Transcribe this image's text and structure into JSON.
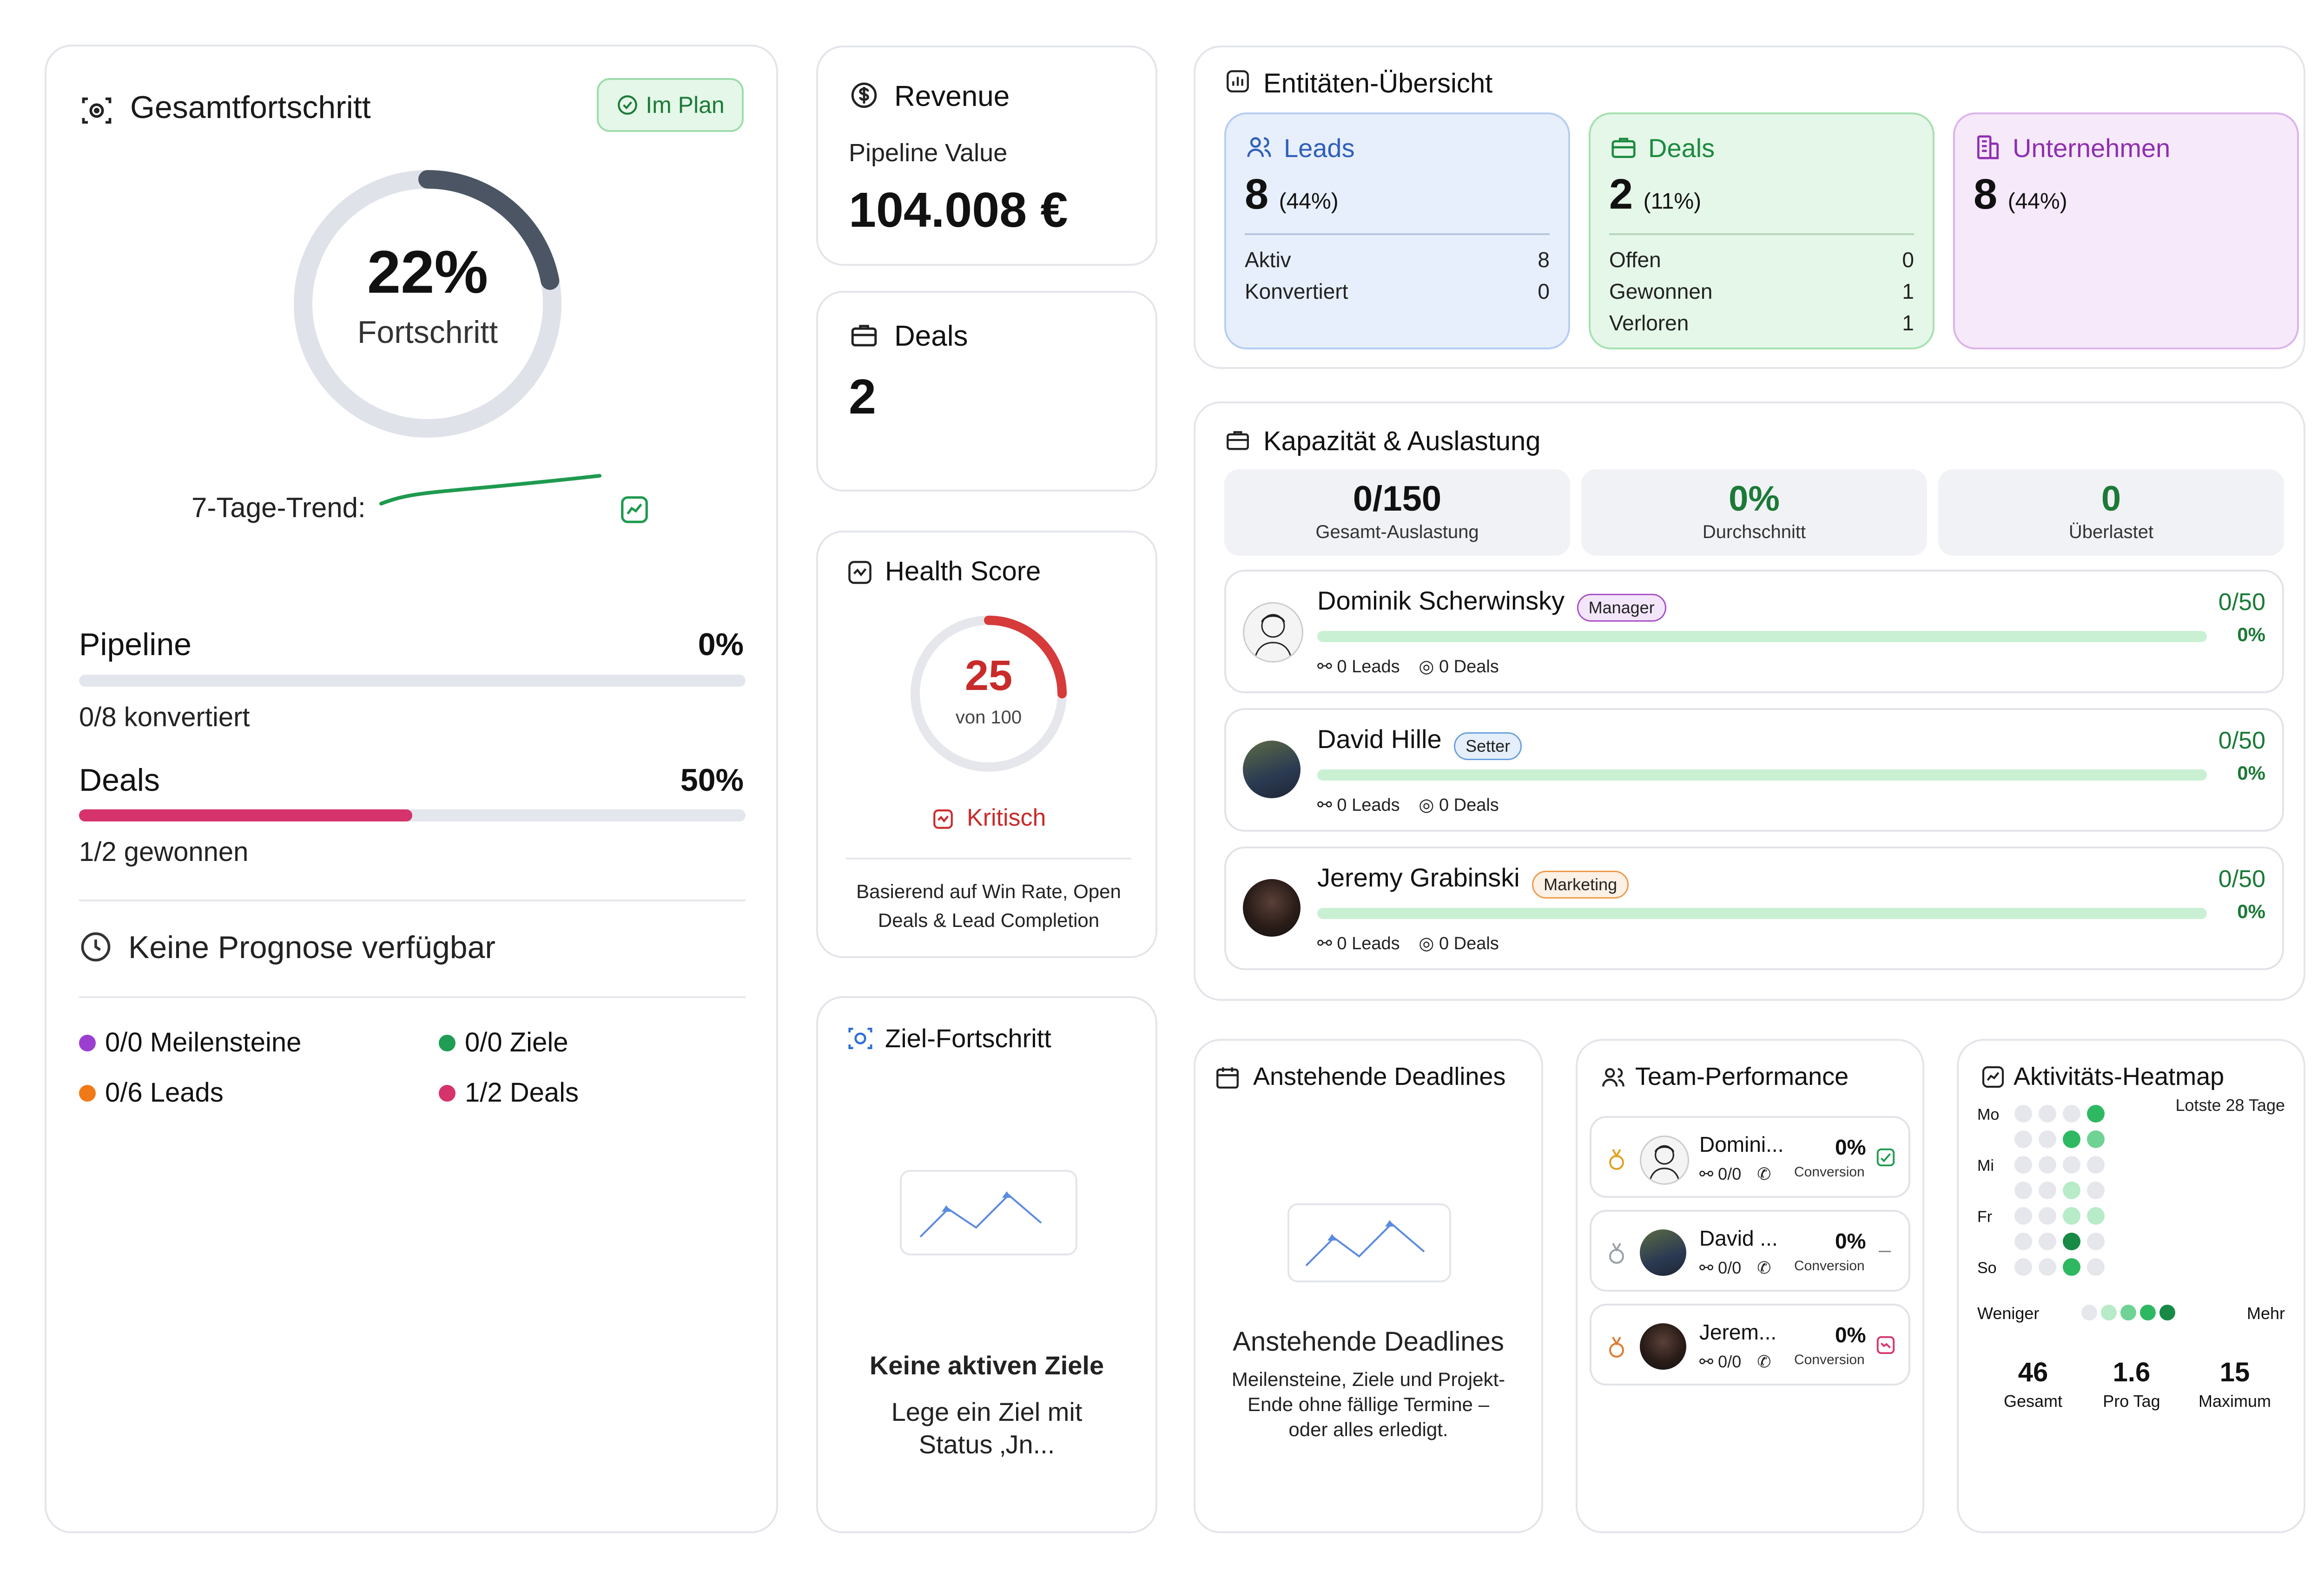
{
  "progress": {
    "title": "Gesamtfortschritt",
    "badge": "Im Plan",
    "percent_label": "22%",
    "percent_value": 22,
    "subtitle": "Fortschritt",
    "trend_label": "7-Tage-Trend:",
    "pipeline": {
      "label": "Pipeline",
      "pct": "0%",
      "value": 0,
      "caption": "0/8 konvertiert"
    },
    "deals": {
      "label": "Deals",
      "pct": "50%",
      "value": 50,
      "caption": "1/2 gewonnen"
    },
    "forecast": "Keine Prognose verfügbar",
    "legend": [
      {
        "label": "0/0 Meilensteine",
        "color": "#9b3fd0"
      },
      {
        "label": "0/0 Ziele",
        "color": "#1f9d55"
      },
      {
        "label": "0/6 Leads",
        "color": "#f07a18"
      },
      {
        "label": "1/2 Deals",
        "color": "#d6336c"
      }
    ]
  },
  "revenue": {
    "title": "Revenue",
    "label": "Pipeline Value",
    "value": "104.008 €"
  },
  "deals_card": {
    "title": "Deals",
    "value": "2"
  },
  "health": {
    "title": "Health Score",
    "score": "25",
    "score_value": 25,
    "of": "von 100",
    "status": "Kritisch",
    "note": "Basierend auf Win Rate, Open Deals & Lead Completion"
  },
  "goals": {
    "title": "Ziel-Fortschritt",
    "empty_title": "Keine aktiven Ziele",
    "empty_text": "Lege ein Ziel mit Status ‚Jn..."
  },
  "entities": {
    "title": "Entitäten-Übersicht",
    "items": [
      {
        "name": "Leads",
        "count": "8",
        "share": "(44%)",
        "rows": [
          [
            "Aktiv",
            "8"
          ],
          [
            "Konvertiert",
            "0"
          ]
        ]
      },
      {
        "name": "Deals",
        "count": "2",
        "share": "(11%)",
        "rows": [
          [
            "Offen",
            "0"
          ],
          [
            "Gewonnen",
            "1"
          ],
          [
            "Verloren",
            "1"
          ]
        ]
      },
      {
        "name": "Unternehmen",
        "count": "8",
        "share": "(44%)",
        "rows": []
      }
    ]
  },
  "capacity": {
    "title": "Kapazität & Auslastung",
    "kpis": [
      {
        "value": "0/150",
        "label": "Gesamt-Auslastung"
      },
      {
        "value": "0%",
        "label": "Durchschnitt"
      },
      {
        "value": "0",
        "label": "Überlastet"
      }
    ],
    "members": [
      {
        "name": "Dominik Scherwinsky",
        "role": "Manager",
        "load": "0/50",
        "pct": "0%",
        "leads": "0 Leads",
        "deals": "0 Deals"
      },
      {
        "name": "David Hille",
        "role": "Setter",
        "load": "0/50",
        "pct": "0%",
        "leads": "0 Leads",
        "deals": "0 Deals"
      },
      {
        "name": "Jeremy Grabinski",
        "role": "Marketing",
        "load": "0/50",
        "pct": "0%",
        "leads": "0 Leads",
        "deals": "0 Deals"
      }
    ]
  },
  "deadlines": {
    "title": "Anstehende Deadlines",
    "empty_title": "Anstehende Deadlines",
    "empty_text": "Meilensteine, Ziele und Projekt-Ende ohne fällige Termine – oder alles erledigt."
  },
  "team": {
    "title": "Team-Performance",
    "members": [
      {
        "name": "Domini...",
        "pct": "0%",
        "conv": "Conversion",
        "ratio": "0/0"
      },
      {
        "name": "David ...",
        "pct": "0%",
        "conv": "Conversion",
        "ratio": "0/0"
      },
      {
        "name": "Jerem...",
        "pct": "0%",
        "conv": "Conversion",
        "ratio": "0/0"
      }
    ]
  },
  "heatmap": {
    "title": "Aktivitäts-Heatmap",
    "range": "Lotste 28 Tage",
    "days": [
      "Mo",
      "Mi",
      "Fr",
      "So"
    ],
    "less": "Weniger",
    "more": "Mehr",
    "stats": [
      {
        "value": "46",
        "label": "Gesamt"
      },
      {
        "value": "1.6",
        "label": "Pro Tag"
      },
      {
        "value": "15",
        "label": "Maximum"
      }
    ]
  }
}
